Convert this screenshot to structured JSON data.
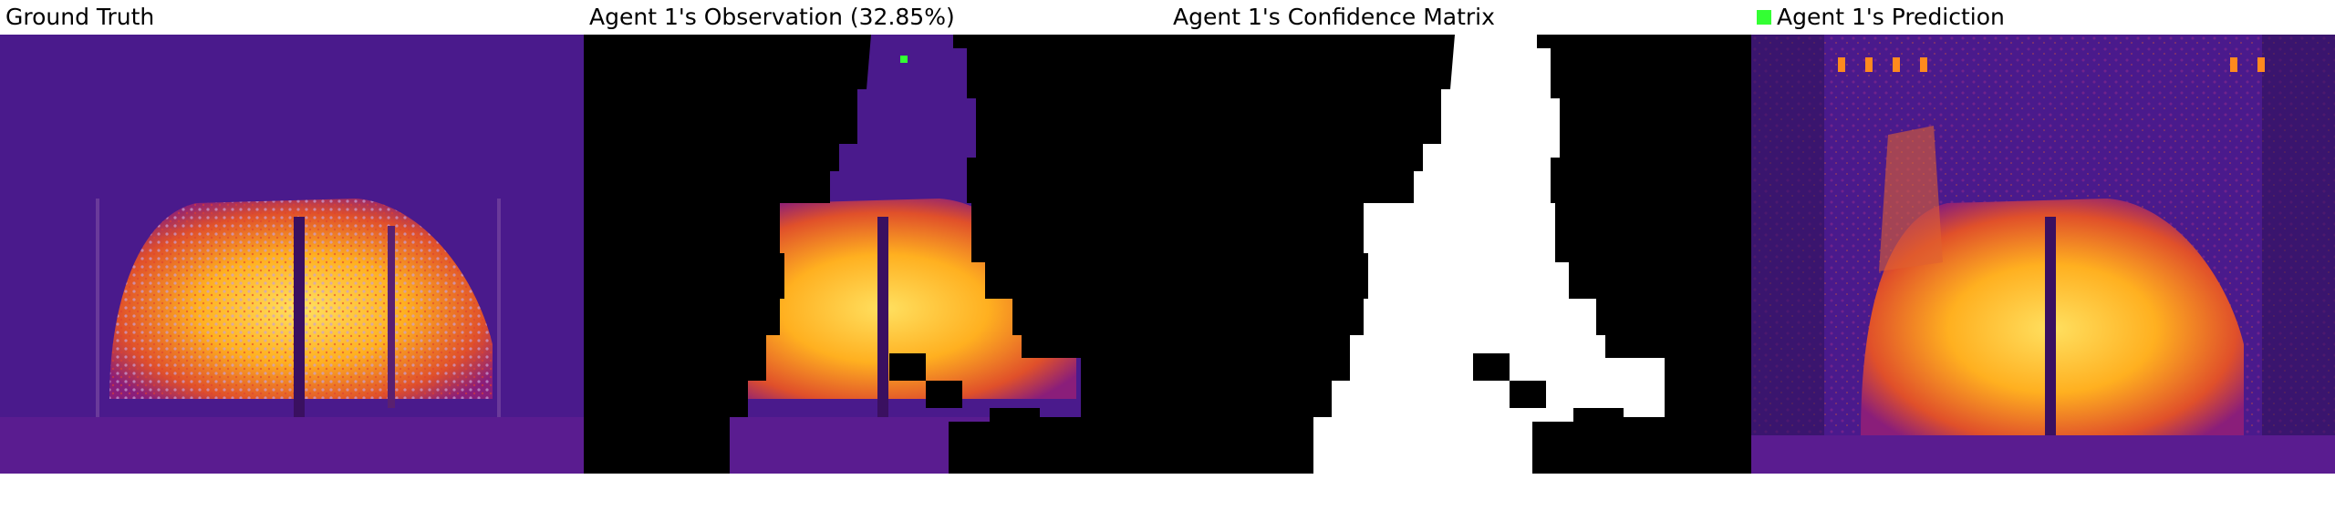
{
  "panels": [
    {
      "title": "Ground Truth"
    },
    {
      "title": "Agent 1's Observation (32.85%)"
    },
    {
      "title": "Agent 1's Confidence Matrix"
    },
    {
      "title": "Agent 1's Prediction"
    }
  ],
  "legend": {
    "label": "Agent 1's Prediction",
    "color": "#33ff33"
  },
  "colors": {
    "background_purple": "#4a1a8c",
    "hot_yellow": "#ffcc22",
    "hot_orange": "#ff8a1e",
    "mask_black": "#000000",
    "mask_white": "#ffffff",
    "marker_green": "#33ff33"
  }
}
